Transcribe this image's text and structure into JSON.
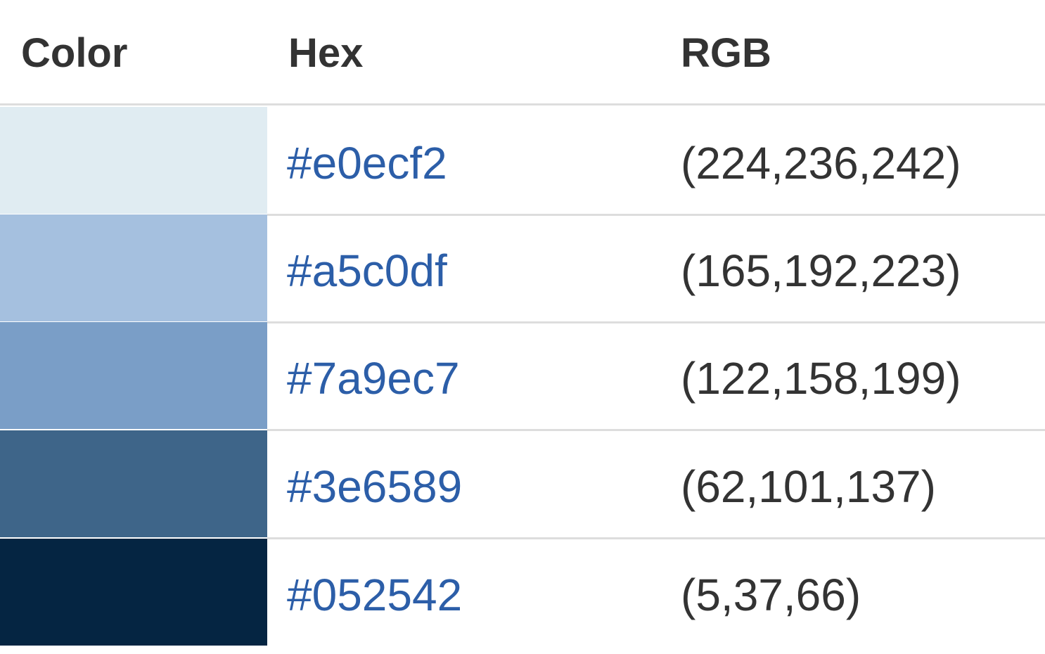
{
  "table": {
    "headers": {
      "color": "Color",
      "hex": "Hex",
      "rgb": "RGB"
    },
    "rows": [
      {
        "swatch_color": "#e0ecf2",
        "hex": "#e0ecf2",
        "rgb": "(224,236,242)"
      },
      {
        "swatch_color": "#a5c0df",
        "hex": "#a5c0df",
        "rgb": "(165,192,223)"
      },
      {
        "swatch_color": "#7a9ec7",
        "hex": "#7a9ec7",
        "rgb": "(122,158,199)"
      },
      {
        "swatch_color": "#3e6589",
        "hex": "#3e6589",
        "rgb": "(62,101,137)"
      },
      {
        "swatch_color": "#052542",
        "hex": "#052542",
        "rgb": "(5,37,66)"
      }
    ]
  },
  "colors": {
    "link": "#2c5ea8",
    "text": "#333333",
    "border": "#dddddd"
  }
}
